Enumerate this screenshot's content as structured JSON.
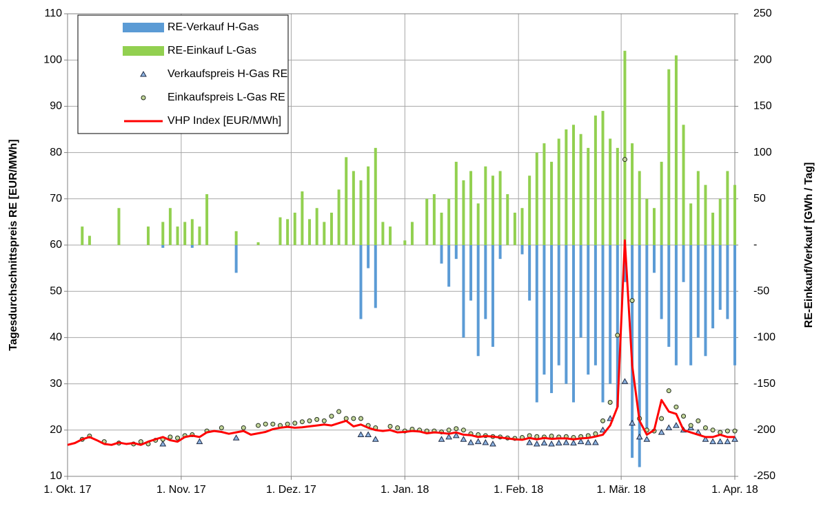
{
  "chart_data": {
    "type": "combo",
    "y_label": "Tagesdurchschnittspreis RE [EUR/MWh]",
    "y2_label": "RE-Einkauf/Verkauf [GWh / Tag]",
    "grid": true,
    "legend": "upper left",
    "xlim": [
      "2017-10-01",
      "2018-04-01"
    ],
    "xticks": [
      {
        "value": "2017-10-01",
        "label": "1. Okt. 17"
      },
      {
        "value": "2017-11-01",
        "label": "1. Nov. 17"
      },
      {
        "value": "2017-12-01",
        "label": "1. Dez. 17"
      },
      {
        "value": "2018-01-01",
        "label": "1. Jan. 18"
      },
      {
        "value": "2018-02-01",
        "label": "1. Feb. 18"
      },
      {
        "value": "2018-03-01",
        "label": "1. Mär. 18"
      },
      {
        "value": "2018-04-01",
        "label": "1. Apr. 18"
      }
    ],
    "ylim": [
      10,
      110
    ],
    "yticks": [
      10,
      20,
      30,
      40,
      50,
      60,
      70,
      80,
      90,
      100,
      110
    ],
    "y2lim": [
      -250,
      250
    ],
    "y2ticks": [
      -250,
      -200,
      -150,
      -100,
      -50,
      {
        "value": 0,
        "label": "-"
      },
      50,
      100,
      150,
      200,
      250
    ],
    "x": [
      "2017-10-01",
      "2017-10-03",
      "2017-10-05",
      "2017-10-07",
      "2017-10-09",
      "2017-10-11",
      "2017-10-13",
      "2017-10-15",
      "2017-10-17",
      "2017-10-19",
      "2017-10-21",
      "2017-10-23",
      "2017-10-25",
      "2017-10-27",
      "2017-10-29",
      "2017-10-31",
      "2017-11-02",
      "2017-11-04",
      "2017-11-06",
      "2017-11-08",
      "2017-11-10",
      "2017-11-12",
      "2017-11-14",
      "2017-11-16",
      "2017-11-18",
      "2017-11-20",
      "2017-11-22",
      "2017-11-24",
      "2017-11-26",
      "2017-11-28",
      "2017-11-30",
      "2017-12-02",
      "2017-12-04",
      "2017-12-06",
      "2017-12-08",
      "2017-12-10",
      "2017-12-12",
      "2017-12-14",
      "2017-12-16",
      "2017-12-18",
      "2017-12-20",
      "2017-12-22",
      "2017-12-24",
      "2017-12-26",
      "2017-12-28",
      "2017-12-30",
      "2018-01-01",
      "2018-01-03",
      "2018-01-05",
      "2018-01-07",
      "2018-01-09",
      "2018-01-11",
      "2018-01-13",
      "2018-01-15",
      "2018-01-17",
      "2018-01-19",
      "2018-01-21",
      "2018-01-23",
      "2018-01-25",
      "2018-01-27",
      "2018-01-29",
      "2018-01-31",
      "2018-02-02",
      "2018-02-04",
      "2018-02-06",
      "2018-02-08",
      "2018-02-10",
      "2018-02-12",
      "2018-02-14",
      "2018-02-16",
      "2018-02-18",
      "2018-02-20",
      "2018-02-22",
      "2018-02-24",
      "2018-02-26",
      "2018-02-28",
      "2018-03-02",
      "2018-03-04",
      "2018-03-06",
      "2018-03-08",
      "2018-03-10",
      "2018-03-12",
      "2018-03-14",
      "2018-03-16",
      "2018-03-18",
      "2018-03-20",
      "2018-03-22",
      "2018-03-24",
      "2018-03-26",
      "2018-03-28",
      "2018-03-30",
      "2018-04-01"
    ],
    "series": [
      {
        "name": "RE-Verkauf H-Gas",
        "type": "bar",
        "axis": "y2",
        "color": "#5b9bd5",
        "values": [
          null,
          null,
          null,
          null,
          null,
          null,
          null,
          null,
          null,
          null,
          null,
          null,
          null,
          -3,
          null,
          null,
          null,
          -3,
          null,
          null,
          null,
          null,
          null,
          -30,
          null,
          null,
          null,
          null,
          null,
          null,
          null,
          null,
          null,
          null,
          null,
          null,
          null,
          null,
          null,
          null,
          -80,
          -25,
          -68,
          null,
          null,
          null,
          null,
          null,
          null,
          null,
          null,
          -20,
          -45,
          -15,
          -100,
          -60,
          -120,
          -80,
          -110,
          -15,
          null,
          null,
          -10,
          -60,
          -170,
          -140,
          -160,
          -130,
          -150,
          -170,
          -100,
          -140,
          -130,
          -170,
          -150,
          -175,
          -40,
          -230,
          -240,
          -200,
          -30,
          -80,
          -110,
          -130,
          -40,
          -130,
          -100,
          -120,
          -90,
          -70,
          -80,
          -130
        ]
      },
      {
        "name": "RE-Einkauf L-Gas",
        "type": "bar",
        "axis": "y2",
        "color": "#92d050",
        "values": [
          null,
          null,
          20,
          10,
          null,
          null,
          null,
          40,
          null,
          null,
          null,
          20,
          null,
          25,
          40,
          20,
          25,
          28,
          20,
          55,
          null,
          null,
          null,
          15,
          null,
          null,
          3,
          null,
          null,
          30,
          28,
          35,
          58,
          28,
          40,
          25,
          35,
          60,
          95,
          80,
          70,
          85,
          105,
          25,
          20,
          null,
          5,
          25,
          null,
          50,
          55,
          35,
          50,
          90,
          70,
          80,
          45,
          85,
          75,
          80,
          55,
          35,
          40,
          75,
          100,
          110,
          90,
          115,
          125,
          130,
          120,
          105,
          140,
          145,
          115,
          105,
          210,
          110,
          80,
          50,
          40,
          90,
          190,
          205,
          130,
          45,
          80,
          65,
          35,
          50,
          80,
          65
        ]
      },
      {
        "name": "Verkaufspreis H-Gas RE",
        "type": "scatter",
        "marker": "triangle",
        "color": "#8db4e2",
        "values": [
          null,
          null,
          null,
          null,
          null,
          null,
          null,
          null,
          null,
          null,
          null,
          null,
          null,
          17,
          null,
          null,
          null,
          null,
          17.5,
          null,
          null,
          null,
          null,
          18.3,
          null,
          null,
          null,
          null,
          null,
          null,
          null,
          null,
          null,
          null,
          null,
          null,
          null,
          null,
          null,
          null,
          19,
          19,
          18,
          null,
          null,
          null,
          null,
          null,
          null,
          null,
          null,
          18,
          18.5,
          18.8,
          18,
          17.3,
          17.5,
          17.3,
          17,
          null,
          null,
          null,
          null,
          17.3,
          17,
          17.2,
          17,
          17.2,
          17.3,
          17.2,
          17.5,
          17.3,
          17.3,
          20,
          22.5,
          null,
          30.5,
          21.5,
          18.5,
          18,
          null,
          19.5,
          20.5,
          21,
          20,
          20.5,
          19.5,
          18,
          17.5,
          17.5,
          17.5,
          18
        ]
      },
      {
        "name": "Einkaufspreis L-Gas RE",
        "type": "scatter",
        "marker": "circle",
        "color": "#c4d79b",
        "values": [
          null,
          null,
          18,
          18.7,
          null,
          17.5,
          null,
          17.2,
          null,
          17,
          17.5,
          17,
          17.8,
          18,
          18.5,
          18.3,
          18.8,
          19,
          null,
          19.8,
          null,
          20.5,
          null,
          null,
          20.5,
          null,
          21,
          21.3,
          21.3,
          21,
          21.3,
          21.5,
          21.8,
          22,
          22.3,
          22,
          23,
          24,
          22.5,
          22.5,
          22.5,
          21,
          20.5,
          null,
          20.8,
          20.5,
          19.8,
          20.2,
          20,
          19.8,
          19.8,
          19.6,
          20,
          20.3,
          20,
          19.2,
          19,
          18.8,
          18.6,
          18.5,
          18.3,
          18.2,
          18.4,
          18.8,
          18.6,
          18.5,
          18.7,
          18.5,
          18.6,
          18.4,
          18.6,
          18.8,
          19.2,
          22,
          26,
          40.5,
          78.5,
          48,
          22.5,
          20,
          19.8,
          22.5,
          28.5,
          25,
          23,
          21,
          22,
          20.5,
          20,
          19.5,
          19.8,
          19.8
        ]
      },
      {
        "name": "VHP Index [EUR/MWh]",
        "type": "line",
        "color": "#ff0000",
        "values": [
          16.8,
          17.2,
          18,
          18.5,
          17.8,
          17,
          16.8,
          17.3,
          17,
          17.2,
          16.8,
          17.5,
          18,
          18.5,
          17.8,
          17.5,
          18.5,
          18.8,
          18.5,
          19.5,
          19.8,
          19.6,
          19.2,
          19.5,
          19.8,
          19,
          19.3,
          19.6,
          20.2,
          20.5,
          20.7,
          20.5,
          20.6,
          20.8,
          21,
          21.2,
          21,
          21.5,
          22,
          20.8,
          21.2,
          20.5,
          20,
          19.8,
          20,
          19.5,
          19.6,
          19.8,
          19.7,
          19.3,
          19.5,
          19.4,
          19.2,
          19.5,
          19,
          18.9,
          18.5,
          18.7,
          18.6,
          18.4,
          18.2,
          18,
          17.9,
          18.3,
          18,
          18.3,
          18.1,
          18.2,
          18.2,
          18,
          18.2,
          18.3,
          18.6,
          19,
          21,
          25,
          61,
          34,
          22,
          19,
          20,
          26.5,
          24,
          23.5,
          20,
          19.5,
          19,
          18.5,
          18.5,
          19,
          18.5,
          18.5
        ]
      }
    ]
  }
}
